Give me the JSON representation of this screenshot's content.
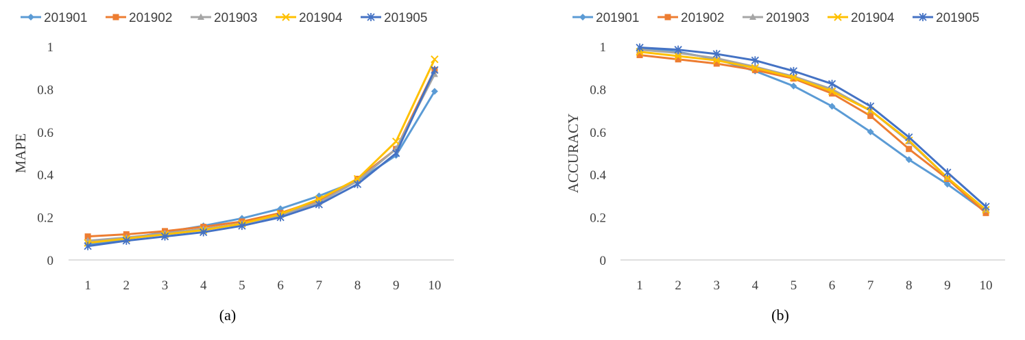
{
  "colors": {
    "201901": "#5B9BD5",
    "201902": "#ED7D31",
    "201903": "#A5A5A5",
    "201904": "#FFC000",
    "201905": "#4472C4",
    "axis": "#bfbfbf",
    "text": "#404040"
  },
  "chart_data": [
    {
      "type": "line",
      "caption": "(a)",
      "ylabel": "MAPE",
      "xlabel": "",
      "categories": [
        "1",
        "2",
        "3",
        "4",
        "5",
        "6",
        "7",
        "8",
        "9",
        "10"
      ],
      "ylim": [
        0,
        1
      ],
      "yticks": [
        "0",
        "0.2",
        "0.4",
        "0.6",
        "0.8",
        "1"
      ],
      "grid": false,
      "legend_position": "top",
      "series": [
        {
          "name": "201901",
          "marker": "diamond",
          "values": [
            0.07,
            0.1,
            0.13,
            0.16,
            0.195,
            0.24,
            0.3,
            0.37,
            0.49,
            0.79
          ]
        },
        {
          "name": "201902",
          "marker": "square",
          "values": [
            0.11,
            0.12,
            0.135,
            0.155,
            0.18,
            0.22,
            0.28,
            0.38,
            0.52,
            0.89
          ]
        },
        {
          "name": "201903",
          "marker": "triangle",
          "values": [
            0.09,
            0.105,
            0.125,
            0.145,
            0.17,
            0.21,
            0.27,
            0.37,
            0.52,
            0.87
          ]
        },
        {
          "name": "201904",
          "marker": "x",
          "values": [
            0.08,
            0.1,
            0.12,
            0.14,
            0.17,
            0.215,
            0.285,
            0.38,
            0.555,
            0.94
          ]
        },
        {
          "name": "201905",
          "marker": "star",
          "values": [
            0.065,
            0.09,
            0.11,
            0.13,
            0.16,
            0.2,
            0.26,
            0.355,
            0.5,
            0.89
          ]
        }
      ]
    },
    {
      "type": "line",
      "caption": "(b)",
      "ylabel": "ACCURACY",
      "xlabel": "",
      "categories": [
        "1",
        "2",
        "3",
        "4",
        "5",
        "6",
        "7",
        "8",
        "9",
        "10"
      ],
      "ylim": [
        0,
        1
      ],
      "yticks": [
        "0",
        "0.2",
        "0.4",
        "0.6",
        "0.8",
        "1"
      ],
      "grid": false,
      "legend_position": "top",
      "series": [
        {
          "name": "201901",
          "marker": "diamond",
          "values": [
            0.99,
            0.975,
            0.94,
            0.885,
            0.815,
            0.72,
            0.6,
            0.47,
            0.355,
            0.225
          ]
        },
        {
          "name": "201902",
          "marker": "square",
          "values": [
            0.96,
            0.94,
            0.92,
            0.89,
            0.85,
            0.78,
            0.675,
            0.52,
            0.38,
            0.22
          ]
        },
        {
          "name": "201903",
          "marker": "triangle",
          "values": [
            0.985,
            0.97,
            0.945,
            0.905,
            0.86,
            0.8,
            0.7,
            0.555,
            0.385,
            0.235
          ]
        },
        {
          "name": "201904",
          "marker": "x",
          "values": [
            0.975,
            0.955,
            0.935,
            0.9,
            0.855,
            0.79,
            0.7,
            0.56,
            0.385,
            0.235
          ]
        },
        {
          "name": "201905",
          "marker": "star",
          "values": [
            0.995,
            0.985,
            0.965,
            0.935,
            0.885,
            0.825,
            0.72,
            0.575,
            0.41,
            0.25
          ]
        }
      ]
    }
  ]
}
